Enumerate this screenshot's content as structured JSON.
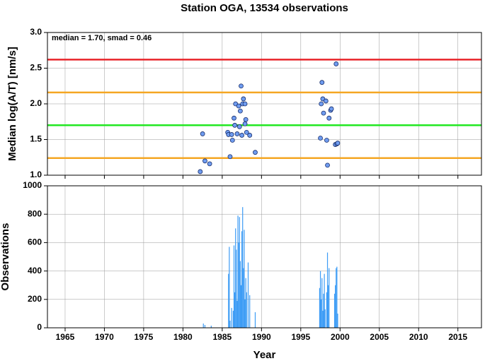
{
  "chart_data": [
    {
      "type": "scatter",
      "title": "Station OGA, 13534 observations",
      "ylabel": "Median log(A/T) [nm/s]",
      "annotation": "median = 1.70, smad = 0.46",
      "xlim": [
        1962.75,
        2018
      ],
      "xticks": [
        1965,
        1970,
        1975,
        1980,
        1985,
        1990,
        1995,
        2000,
        2005,
        2010,
        2015
      ],
      "ylim": [
        1.0,
        3.0
      ],
      "yticks": [
        {
          "value": 1.0,
          "label": "1.0"
        },
        1.5,
        {
          "value": 2.0,
          "label": "2.0"
        },
        2.5,
        {
          "value": 3.0,
          "label": "3.0"
        }
      ],
      "grid": true,
      "hlines": [
        {
          "value": 2.62,
          "color": "#e8242a"
        },
        {
          "value": 2.16,
          "color": "#f5a623"
        },
        {
          "value": 1.7,
          "color": "#22e822"
        },
        {
          "value": 1.24,
          "color": "#f5a623"
        }
      ],
      "color": "#6f9cf0",
      "x": [
        1982.2,
        1982.5,
        1982.8,
        1983.4,
        1985.7,
        1985.8,
        1986.0,
        1986.2,
        1986.3,
        1986.5,
        1986.6,
        1986.7,
        1986.9,
        1987.1,
        1987.2,
        1987.3,
        1987.4,
        1987.5,
        1987.6,
        1987.7,
        1987.9,
        1987.9,
        1988.0,
        1988.1,
        1988.5,
        1989.2,
        1997.5,
        1997.6,
        1997.7,
        1997.8,
        1997.9,
        1998.2,
        1998.3,
        1998.4,
        1998.6,
        1998.8,
        1998.9,
        1999.4,
        1999.5,
        1999.6,
        1999.7
      ],
      "values": [
        1.05,
        1.58,
        1.2,
        1.16,
        1.6,
        1.57,
        1.26,
        1.57,
        1.49,
        1.8,
        1.7,
        2.0,
        1.58,
        1.97,
        1.68,
        1.9,
        2.25,
        1.56,
        2.0,
        2.07,
        2.0,
        1.72,
        1.78,
        1.6,
        1.56,
        1.32,
        1.52,
        2.0,
        2.3,
        2.07,
        1.87,
        2.04,
        1.49,
        1.14,
        1.8,
        1.91,
        1.93,
        1.43,
        2.56,
        1.44,
        1.45
      ]
    },
    {
      "type": "bar",
      "ylabel": "Observations",
      "xlabel": "Year",
      "xlim": [
        1962.75,
        2018
      ],
      "xticks": [
        1965,
        1970,
        1975,
        1980,
        1985,
        1990,
        1995,
        2000,
        2005,
        2010,
        2015
      ],
      "ylim": [
        0,
        1000
      ],
      "yticks": [
        0,
        200,
        400,
        600,
        800,
        1000
      ],
      "grid": true,
      "color": "#3d9cf5",
      "x": [
        1982.6,
        1982.8,
        1983.6,
        1985.8,
        1985.9,
        1986.0,
        1986.2,
        1986.4,
        1986.5,
        1986.6,
        1986.7,
        1986.8,
        1986.9,
        1987.0,
        1987.1,
        1987.2,
        1987.3,
        1987.4,
        1987.5,
        1987.6,
        1987.7,
        1987.8,
        1987.9,
        1988.0,
        1988.1,
        1988.3,
        1988.5,
        1989.2,
        1997.4,
        1997.5,
        1997.6,
        1997.7,
        1997.8,
        1997.9,
        1998.0,
        1998.1,
        1998.3,
        1998.4,
        1998.5,
        1998.6,
        1999.3,
        1999.4,
        1999.5,
        1999.6,
        1999.7
      ],
      "values": [
        30,
        20,
        15,
        380,
        570,
        50,
        140,
        120,
        580,
        250,
        700,
        550,
        190,
        790,
        600,
        780,
        470,
        300,
        680,
        850,
        420,
        690,
        200,
        350,
        250,
        460,
        230,
        110,
        280,
        400,
        200,
        350,
        120,
        240,
        380,
        130,
        250,
        530,
        300,
        420,
        240,
        300,
        420,
        430,
        100
      ]
    }
  ]
}
